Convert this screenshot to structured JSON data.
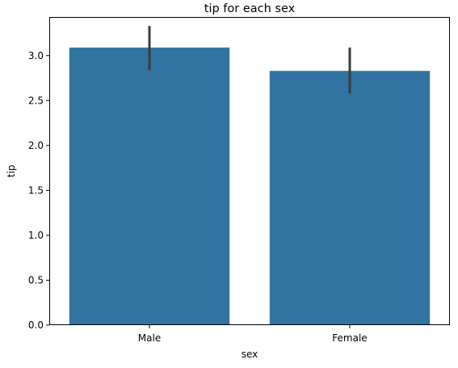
{
  "chart_data": {
    "type": "bar",
    "title": "tip for each sex",
    "xlabel": "sex",
    "ylabel": "tip",
    "categories": [
      "Male",
      "Female"
    ],
    "values": [
      3.09,
      2.83
    ],
    "error_bars": [
      {
        "low": 2.84,
        "high": 3.33
      },
      {
        "low": 2.58,
        "high": 3.09
      }
    ],
    "ylim": [
      0,
      3.43
    ],
    "yticks": [
      0.0,
      0.5,
      1.0,
      1.5,
      2.0,
      2.5,
      3.0
    ],
    "ytick_labels": [
      "0.0",
      "0.5",
      "1.0",
      "1.5",
      "2.0",
      "2.5",
      "3.0"
    ],
    "grid": false,
    "colors": {
      "bar": "#3274a1",
      "error_bar": "#3d3d3d",
      "axis": "#000000"
    }
  }
}
